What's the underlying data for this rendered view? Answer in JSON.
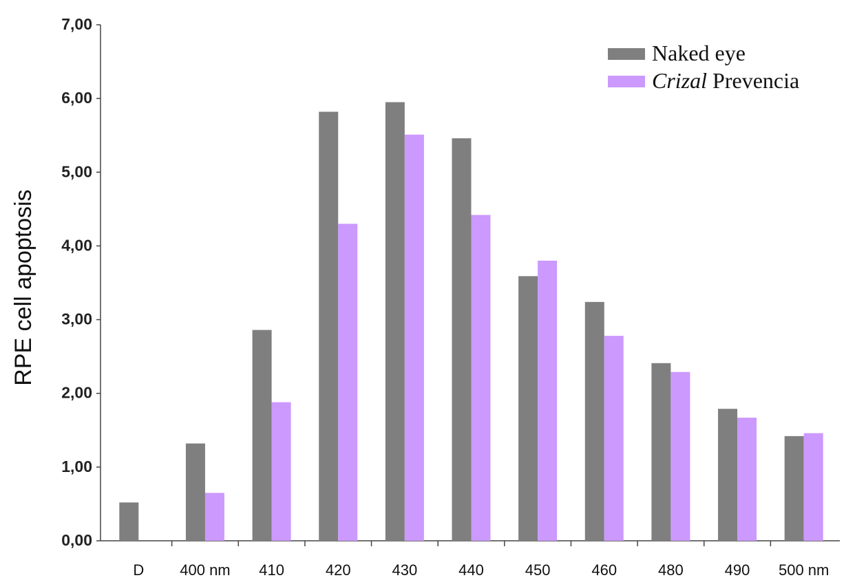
{
  "chart_data": {
    "type": "bar",
    "title": "",
    "xlabel": "",
    "ylabel": "RPE cell apoptosis",
    "ylim": [
      0,
      7
    ],
    "y_ticks": [
      "0,00",
      "1,00",
      "2,00",
      "3,00",
      "4,00",
      "5,00",
      "6,00",
      "7,00"
    ],
    "categories": [
      "D",
      "400 nm",
      "410",
      "420",
      "430",
      "440",
      "450",
      "460",
      "480",
      "490",
      "500 nm"
    ],
    "series": [
      {
        "name": "Naked eye",
        "color": "#7f7f7f",
        "values": [
          0.52,
          1.32,
          2.86,
          5.82,
          5.95,
          5.46,
          3.59,
          3.24,
          2.41,
          1.79,
          1.42
        ]
      },
      {
        "name_italic": "Crizal",
        "name_rest": " Prevencia",
        "color": "#cc99ff",
        "values": [
          null,
          0.65,
          1.88,
          4.3,
          5.51,
          4.42,
          3.8,
          2.78,
          2.29,
          1.67,
          1.46
        ]
      }
    ],
    "grid": false,
    "legend_position": "top-right"
  }
}
